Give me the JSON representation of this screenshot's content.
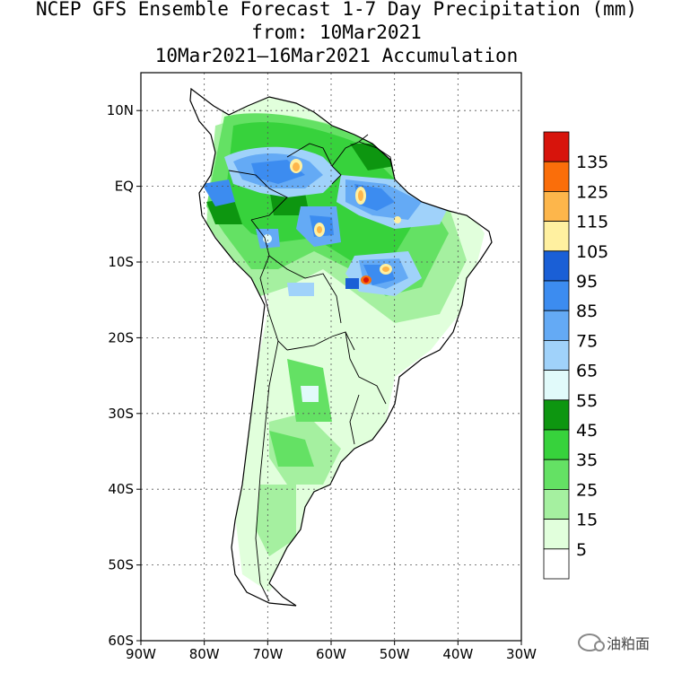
{
  "title": {
    "line1": "NCEP GFS Ensemble Forecast 1-7 Day Precipitation (mm)",
    "line2": "from: 10Mar2021",
    "line3": "10Mar2021—16Mar2021 Accumulation"
  },
  "map": {
    "region": "South America",
    "lat_range": [
      -60,
      15
    ],
    "lon_range": [
      -90,
      -30
    ],
    "y_ticks": [
      "10N",
      "EQ",
      "10S",
      "20S",
      "30S",
      "40S",
      "50S",
      "60S"
    ],
    "y_tick_values": [
      10,
      0,
      -10,
      -20,
      -30,
      -40,
      -50,
      -60
    ],
    "x_ticks": [
      "90W",
      "80W",
      "70W",
      "60W",
      "50W",
      "40W",
      "30W"
    ],
    "x_tick_values": [
      -90,
      -80,
      -70,
      -60,
      -50,
      -40,
      -30
    ]
  },
  "legend": {
    "unit": "mm",
    "labels": [
      "135",
      "125",
      "115",
      "105",
      "95",
      "85",
      "75",
      "65",
      "55",
      "45",
      "35",
      "25",
      "15",
      "5"
    ],
    "colors": [
      "#d7140c",
      "#fa6e0a",
      "#fdb64b",
      "#fff0a0",
      "#1a5fd6",
      "#3c8cf0",
      "#64aaf5",
      "#a0d2fa",
      "#e1fafa",
      "#0d9610",
      "#37d23c",
      "#64e164",
      "#a5f0a0",
      "#e1ffdc",
      "#ffffff"
    ]
  },
  "watermark": {
    "text": "油粕面"
  }
}
